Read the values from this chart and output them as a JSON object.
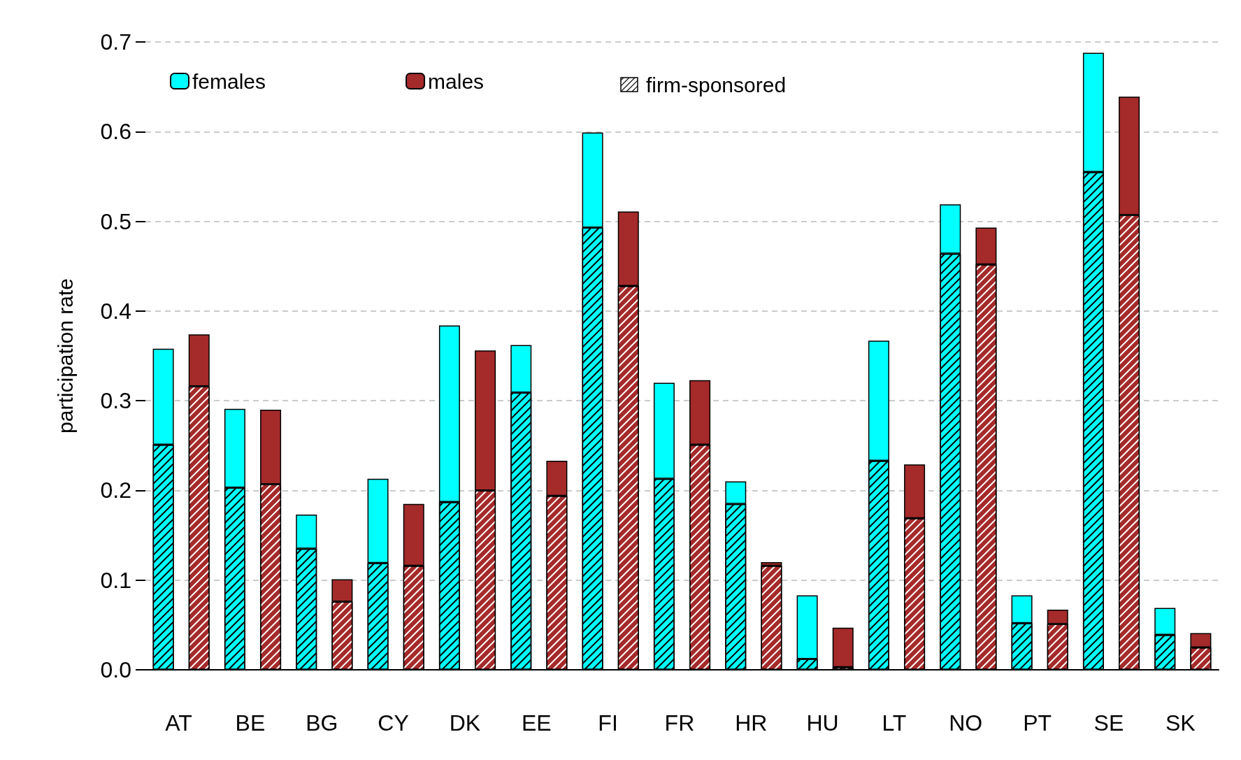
{
  "chart_data": {
    "type": "bar",
    "stacked": true,
    "ylabel": "participation rate",
    "categories": [
      "AT",
      null,
      "BE",
      null,
      "BG",
      null,
      "CY",
      null,
      "DK",
      null,
      "EE",
      null,
      "FI",
      null,
      "FR",
      null,
      "HR",
      null,
      "HU",
      null,
      "LT",
      null,
      "NO",
      null,
      "PT",
      null,
      "SE",
      null,
      "SK",
      null
    ],
    "series": [
      {
        "color": "#00ffff",
        "values": [
          0.251,
          null,
          0.203,
          null,
          0.135,
          null,
          0.119,
          null,
          0.187,
          null,
          0.309,
          null,
          0.493,
          null,
          0.213,
          null,
          0.185,
          null,
          0.012,
          null,
          0.233,
          null,
          0.464,
          null,
          0.052,
          null,
          0.555,
          null,
          0.039,
          null
        ]
      },
      {
        "name": "females",
        "color": "#00ffff",
        "values": [
          0.107,
          null,
          0.088,
          null,
          0.038,
          null,
          0.094,
          null,
          0.197,
          null,
          0.053,
          null,
          0.106,
          null,
          0.107,
          null,
          0.025,
          null,
          0.071,
          null,
          0.134,
          null,
          0.055,
          null,
          0.031,
          null,
          0.133,
          null,
          0.03,
          null
        ]
      },
      {
        "color": "#a52a2a",
        "values": [
          null,
          0.316,
          null,
          0.207,
          null,
          0.076,
          null,
          0.116,
          null,
          0.2,
          null,
          0.194,
          null,
          0.428,
          null,
          0.251,
          null,
          0.116,
          null,
          0.003,
          null,
          0.169,
          null,
          0.452,
          null,
          0.051,
          null,
          0.507,
          null,
          0.025
        ]
      },
      {
        "name": "males",
        "color": "#a52a2a",
        "values": [
          null,
          0.058,
          null,
          0.083,
          null,
          0.025,
          null,
          0.069,
          null,
          0.156,
          null,
          0.039,
          null,
          0.083,
          null,
          0.072,
          null,
          0.004,
          null,
          0.044,
          null,
          0.06,
          null,
          0.041,
          null,
          0.016,
          null,
          0.132,
          null,
          0.016
        ]
      }
    ],
    "annotations": [
      "firm-sponsored"
    ],
    "ylim": [
      0,
      0.7
    ],
    "yticks": [
      {
        "value": 0,
        "label": "0.0"
      },
      {
        "value": 0.1,
        "label": "0.1"
      },
      {
        "value": 0.2,
        "label": "0.2"
      },
      {
        "value": 0.3,
        "label": "0.3"
      },
      {
        "value": 0.4,
        "label": "0.4"
      },
      {
        "value": 0.5,
        "label": "0.5"
      },
      {
        "value": 0.6,
        "label": "0.6"
      },
      {
        "value": 0.7,
        "label": "0.7"
      }
    ],
    "grid": "y",
    "legend": "top left"
  }
}
